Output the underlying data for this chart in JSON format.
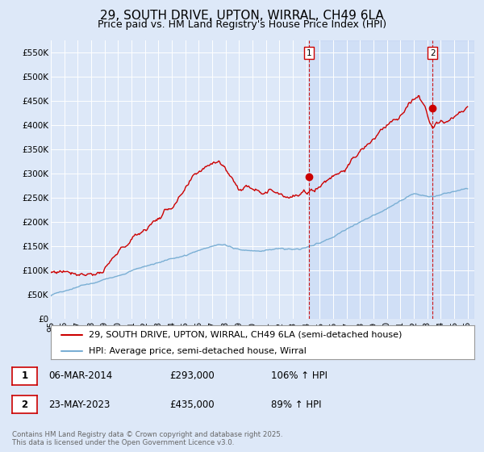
{
  "title": "29, SOUTH DRIVE, UPTON, WIRRAL, CH49 6LA",
  "subtitle": "Price paid vs. HM Land Registry's House Price Index (HPI)",
  "ylim": [
    0,
    575000
  ],
  "xlim_start": 1995.0,
  "xlim_end": 2026.5,
  "yticks": [
    0,
    50000,
    100000,
    150000,
    200000,
    250000,
    300000,
    350000,
    400000,
    450000,
    500000,
    550000
  ],
  "ytick_labels": [
    "£0",
    "£50K",
    "£100K",
    "£150K",
    "£200K",
    "£250K",
    "£300K",
    "£350K",
    "£400K",
    "£450K",
    "£500K",
    "£550K"
  ],
  "xticks": [
    1995,
    1996,
    1997,
    1998,
    1999,
    2000,
    2001,
    2002,
    2003,
    2004,
    2005,
    2006,
    2007,
    2008,
    2009,
    2010,
    2011,
    2012,
    2013,
    2014,
    2015,
    2016,
    2017,
    2018,
    2019,
    2020,
    2021,
    2022,
    2023,
    2024,
    2025,
    2026
  ],
  "xtick_labels": [
    "95",
    "96",
    "97",
    "98",
    "99",
    "00",
    "01",
    "02",
    "03",
    "04",
    "05",
    "06",
    "07",
    "08",
    "09",
    "10",
    "11",
    "12",
    "13",
    "14",
    "15",
    "16",
    "17",
    "18",
    "19",
    "20",
    "21",
    "22",
    "23",
    "24",
    "25",
    "26"
  ],
  "background_color": "#dde8f8",
  "plot_bg_color": "#dde8f8",
  "fill_after_color": "#d0e0f5",
  "grid_color": "#ffffff",
  "red_color": "#cc0000",
  "blue_color": "#7aafd4",
  "vline_color": "#cc0000",
  "marker1_x": 2014.18,
  "marker1_y": 293000,
  "marker1_label": "1",
  "marker2_x": 2023.39,
  "marker2_y": 435000,
  "marker2_label": "2",
  "legend_label1": "29, SOUTH DRIVE, UPTON, WIRRAL, CH49 6LA (semi-detached house)",
  "legend_label2": "HPI: Average price, semi-detached house, Wirral",
  "annotation1_date": "06-MAR-2014",
  "annotation1_price": "£293,000",
  "annotation1_hpi": "106% ↑ HPI",
  "annotation2_date": "23-MAY-2023",
  "annotation2_price": "£435,000",
  "annotation2_hpi": "89% ↑ HPI",
  "footer": "Contains HM Land Registry data © Crown copyright and database right 2025.\nThis data is licensed under the Open Government Licence v3.0.",
  "title_fontsize": 11,
  "subtitle_fontsize": 9,
  "tick_fontsize": 7.5,
  "legend_fontsize": 8,
  "annotation_fontsize": 8.5
}
